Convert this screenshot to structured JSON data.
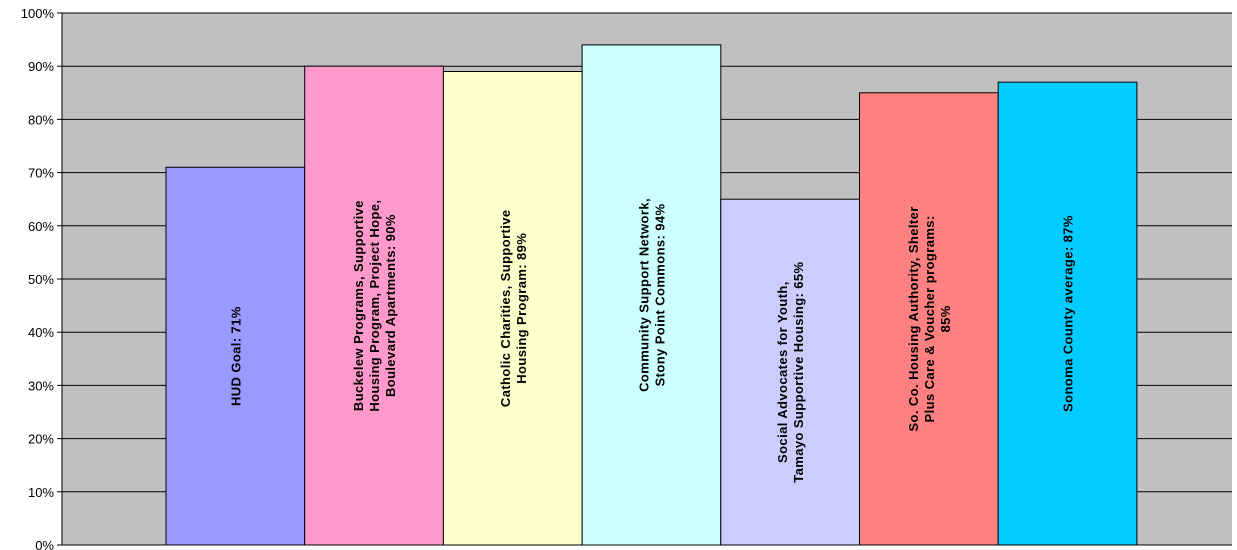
{
  "chart_data": {
    "type": "bar",
    "title": "",
    "xlabel": "",
    "ylabel": "",
    "ylim": [
      0,
      100
    ],
    "y_tick_step": 10,
    "y_tick_suffix": "%",
    "grid": true,
    "plot_background": "#c0c0c0",
    "bars": [
      {
        "value": 71,
        "color": "#9999ff",
        "label_lines": [
          "HUD Goal: 71%"
        ]
      },
      {
        "value": 90,
        "color": "#ff99cc",
        "label_lines": [
          "Buckelew Programs, Supportive",
          "Housing Program, Project Hope,",
          "Boulevard Apartments: 90%"
        ]
      },
      {
        "value": 89,
        "color": "#ffffcc",
        "label_lines": [
          "Catholic Charities, Supportive",
          "Housing Program: 89%"
        ]
      },
      {
        "value": 94,
        "color": "#ccffff",
        "label_lines": [
          "Community Support Network,",
          "Stony Point Commons: 94%"
        ]
      },
      {
        "value": 65,
        "color": "#ccccff",
        "label_lines": [
          "Social Advocates for Youth,",
          "Tamayo Supportive Housing: 65%"
        ]
      },
      {
        "value": 85,
        "color": "#ff8080",
        "label_lines": [
          "So. Co. Housing Authority, Shelter",
          "Plus Care & Voucher programs:",
          "85%"
        ]
      },
      {
        "value": 87,
        "color": "#00ccff",
        "label_lines": [
          "Sonoma County average: 87%"
        ]
      }
    ]
  }
}
